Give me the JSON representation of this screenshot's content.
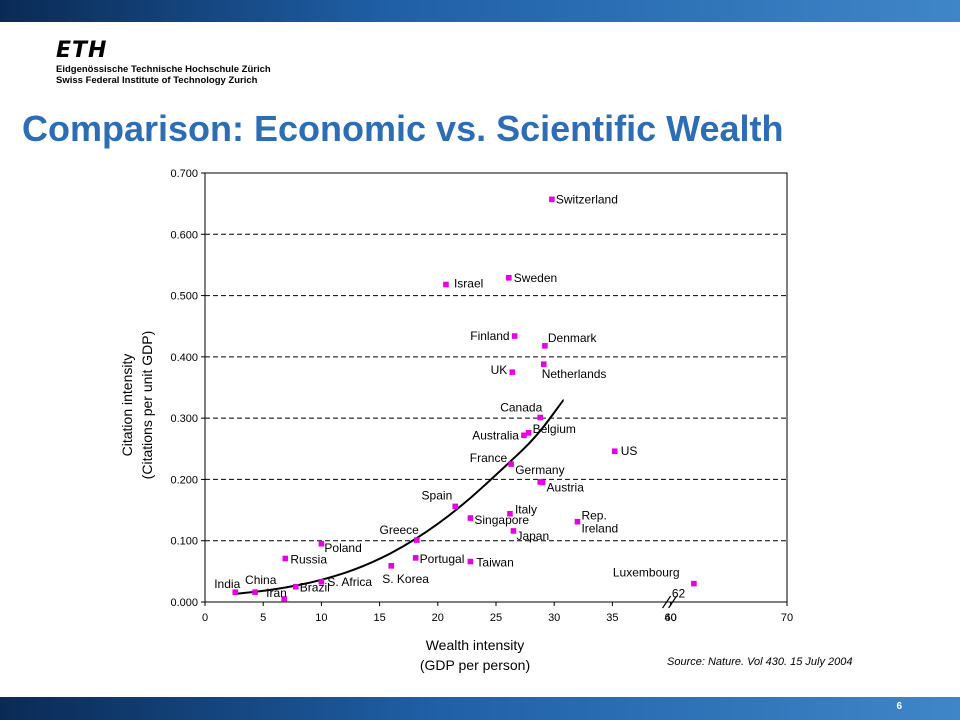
{
  "slide": {
    "title": "Comparison: Economic vs. Scientific Wealth",
    "source": "Source: Nature. Vol 430. 15 July 2004",
    "page_number": "6"
  },
  "logo": {
    "mark": "ETH",
    "line1": "Eidgenössische Technische Hochschule Zürich",
    "line2": "Swiss Federal Institute of Technology Zurich"
  },
  "colors": {
    "band": "#1f5fa6",
    "title": "#2d6db5",
    "point": "#e800e8",
    "trend": "#000000",
    "grid": "#000000"
  },
  "chart_data": {
    "type": "scatter",
    "xlabel": [
      "Wealth intensity",
      "(GDP per person)"
    ],
    "ylabel": [
      "Citation intensity",
      "(Citations per unit GDP)"
    ],
    "xlim": [
      0,
      70
    ],
    "ylim": [
      0,
      0.7
    ],
    "xticks": [
      "0",
      "5",
      "10",
      "15",
      "20",
      "25",
      "30",
      "35",
      "40",
      "60",
      "70"
    ],
    "yticks": [
      "0.000",
      "0.100",
      "0.200",
      "0.300",
      "0.400",
      "0.500",
      "0.600",
      "0.700"
    ],
    "grid": "horizontal dashed",
    "axis_break": "between 40 and 60",
    "points": [
      {
        "label": "Switzerland",
        "x": 29.8,
        "y": 0.657
      },
      {
        "label": "Israel",
        "x": 20.7,
        "y": 0.518
      },
      {
        "label": "Sweden",
        "x": 26.1,
        "y": 0.529
      },
      {
        "label": "Finland",
        "x": 26.6,
        "y": 0.434
      },
      {
        "label": "Denmark",
        "x": 29.2,
        "y": 0.418
      },
      {
        "label": "UK",
        "x": 26.4,
        "y": 0.375
      },
      {
        "label": "Netherlands",
        "x": 29.1,
        "y": 0.388
      },
      {
        "label": "Canada",
        "x": 28.8,
        "y": 0.301
      },
      {
        "label": "Australia",
        "x": 27.4,
        "y": 0.272
      },
      {
        "label": "Belgium",
        "x": 27.8,
        "y": 0.276
      },
      {
        "label": "US",
        "x": 35.2,
        "y": 0.246
      },
      {
        "label": "France",
        "x": 26.3,
        "y": 0.225
      },
      {
        "label": "Germany",
        "x": 28.8,
        "y": 0.196
      },
      {
        "label": "Austria",
        "x": 29.0,
        "y": 0.195
      },
      {
        "label": "Spain",
        "x": 21.5,
        "y": 0.156
      },
      {
        "label": "Italy",
        "x": 26.2,
        "y": 0.144
      },
      {
        "label": "Singapore",
        "x": 22.8,
        "y": 0.137
      },
      {
        "label": "Japan",
        "x": 26.5,
        "y": 0.116
      },
      {
        "label": "Rep. Ireland",
        "x": 32.0,
        "y": 0.131
      },
      {
        "label": "Greece",
        "x": 18.2,
        "y": 0.101
      },
      {
        "label": "Poland",
        "x": 10.0,
        "y": 0.095
      },
      {
        "label": "Russia",
        "x": 6.9,
        "y": 0.071
      },
      {
        "label": "Portugal",
        "x": 18.1,
        "y": 0.072
      },
      {
        "label": "S. Korea",
        "x": 16.0,
        "y": 0.059
      },
      {
        "label": "Taiwan",
        "x": 22.8,
        "y": 0.066
      },
      {
        "label": "S. Africa",
        "x": 10.0,
        "y": 0.033
      },
      {
        "label": "China",
        "x": 4.3,
        "y": 0.016
      },
      {
        "label": "India",
        "x": 2.6,
        "y": 0.016
      },
      {
        "label": "Iran",
        "x": 6.8,
        "y": 0.005
      },
      {
        "label": "Brazil",
        "x": 7.8,
        "y": 0.025
      },
      {
        "label": "Luxembourg",
        "x": 62.0,
        "y": 0.03
      }
    ],
    "outlier_value_label": "62",
    "trend_line": [
      [
        2.5,
        0.013
      ],
      [
        6,
        0.02
      ],
      [
        10,
        0.035
      ],
      [
        14,
        0.06
      ],
      [
        18,
        0.1
      ],
      [
        22,
        0.155
      ],
      [
        26,
        0.225
      ],
      [
        28.5,
        0.27
      ],
      [
        30.8,
        0.33
      ]
    ]
  }
}
